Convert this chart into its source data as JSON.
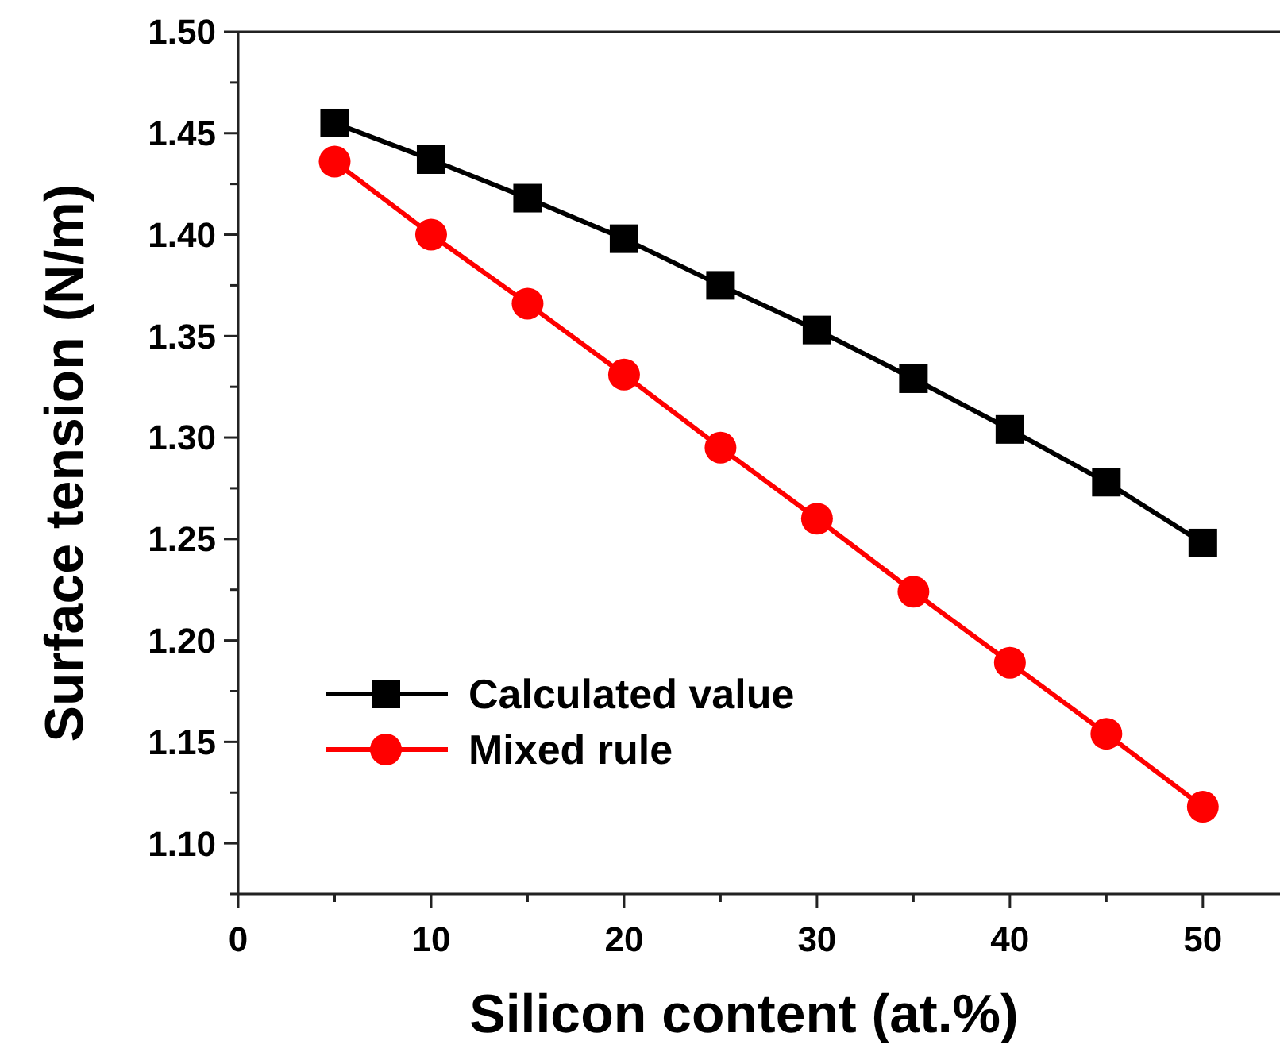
{
  "chart_data": {
    "type": "line",
    "xlabel": "Silicon content (at.%)",
    "ylabel": "Surface tension (N/m)",
    "x": [
      5,
      10,
      15,
      20,
      25,
      30,
      35,
      40,
      45,
      50
    ],
    "series": [
      {
        "name": "Calculated value",
        "color": "#000000",
        "marker": "square",
        "values": [
          1.455,
          1.437,
          1.418,
          1.398,
          1.375,
          1.353,
          1.329,
          1.304,
          1.278,
          1.248
        ]
      },
      {
        "name": "Mixed rule",
        "color": "#ff0000",
        "marker": "circle",
        "values": [
          1.436,
          1.4,
          1.366,
          1.331,
          1.295,
          1.26,
          1.224,
          1.189,
          1.154,
          1.118
        ]
      }
    ],
    "xlim": [
      0,
      54
    ],
    "ylim": [
      1.075,
      1.5
    ],
    "xticks": [
      0,
      {
        "value": 5,
        "label": null
      },
      10,
      {
        "value": 15,
        "label": null
      },
      20,
      {
        "value": 25,
        "label": null
      },
      30,
      {
        "value": 35,
        "label": null
      },
      40,
      {
        "value": 45,
        "label": null
      },
      50
    ],
    "yticks": [
      {
        "value": 1.075,
        "label": null
      },
      "1.10",
      {
        "value": 1.125,
        "label": null
      },
      1.15,
      {
        "value": 1.175,
        "label": null
      },
      "1.20",
      {
        "value": 1.225,
        "label": null
      },
      1.25,
      {
        "value": 1.275,
        "label": null
      },
      "1.30",
      {
        "value": 1.325,
        "label": null
      },
      1.35,
      {
        "value": 1.375,
        "label": null
      },
      "1.40",
      {
        "value": 1.425,
        "label": null
      },
      1.45,
      {
        "value": 1.475,
        "label": null
      },
      "1.50"
    ],
    "grid": false,
    "legend": "bottom left",
    "line_style": "solid"
  }
}
